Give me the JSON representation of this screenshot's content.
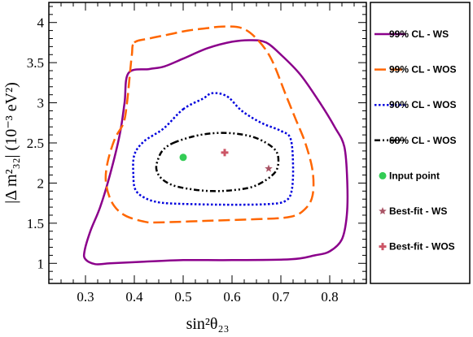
{
  "chart_data": {
    "type": "contour",
    "xlabel": "sin²θ₂₃",
    "ylabel": "|Δ m²₃₂| (10⁻³ eV²)",
    "xlim": [
      0.225,
      0.875
    ],
    "ylim": [
      0.75,
      4.25
    ],
    "x_ticks": [
      "0.3",
      "0.4",
      "0.5",
      "0.6",
      "0.7",
      "0.8"
    ],
    "y_ticks": [
      "1",
      "1.5",
      "2",
      "2.5",
      "3",
      "3.5",
      "4"
    ],
    "grid": false,
    "legend_position": "right",
    "series": [
      {
        "name": "99% CL - WS",
        "color": "#8b008b",
        "style": "solid",
        "points": [
          [
            0.388,
            3.37
          ],
          [
            0.43,
            3.42
          ],
          [
            0.46,
            3.45
          ],
          [
            0.5,
            3.55
          ],
          [
            0.55,
            3.68
          ],
          [
            0.6,
            3.76
          ],
          [
            0.64,
            3.78
          ],
          [
            0.67,
            3.75
          ],
          [
            0.7,
            3.6
          ],
          [
            0.74,
            3.35
          ],
          [
            0.78,
            3.0
          ],
          [
            0.81,
            2.7
          ],
          [
            0.83,
            2.45
          ],
          [
            0.836,
            2.0
          ],
          [
            0.835,
            1.6
          ],
          [
            0.825,
            1.3
          ],
          [
            0.8,
            1.15
          ],
          [
            0.77,
            1.1
          ],
          [
            0.72,
            1.05
          ],
          [
            0.6,
            1.04
          ],
          [
            0.5,
            1.04
          ],
          [
            0.42,
            1.02
          ],
          [
            0.35,
            1.0
          ],
          [
            0.32,
            0.99
          ],
          [
            0.3,
            1.05
          ],
          [
            0.298,
            1.15
          ],
          [
            0.31,
            1.4
          ],
          [
            0.33,
            1.7
          ],
          [
            0.35,
            2.1
          ],
          [
            0.37,
            2.6
          ],
          [
            0.38,
            3.0
          ],
          [
            0.388,
            3.37
          ]
        ]
      },
      {
        "name": "99% CL - WOS",
        "color": "#ff6600",
        "style": "dashed",
        "points": [
          [
            0.4,
            3.75
          ],
          [
            0.43,
            3.8
          ],
          [
            0.47,
            3.85
          ],
          [
            0.51,
            3.9
          ],
          [
            0.55,
            3.93
          ],
          [
            0.58,
            3.95
          ],
          [
            0.62,
            3.93
          ],
          [
            0.65,
            3.8
          ],
          [
            0.68,
            3.55
          ],
          [
            0.71,
            3.1
          ],
          [
            0.73,
            2.8
          ],
          [
            0.75,
            2.5
          ],
          [
            0.765,
            2.15
          ],
          [
            0.765,
            1.85
          ],
          [
            0.75,
            1.68
          ],
          [
            0.72,
            1.58
          ],
          [
            0.65,
            1.55
          ],
          [
            0.55,
            1.53
          ],
          [
            0.45,
            1.51
          ],
          [
            0.42,
            1.52
          ],
          [
            0.38,
            1.6
          ],
          [
            0.355,
            1.75
          ],
          [
            0.342,
            2.0
          ],
          [
            0.345,
            2.25
          ],
          [
            0.36,
            2.55
          ],
          [
            0.378,
            2.75
          ],
          [
            0.385,
            3.0
          ],
          [
            0.39,
            3.3
          ],
          [
            0.395,
            3.6
          ],
          [
            0.4,
            3.75
          ]
        ]
      },
      {
        "name": "90% CL - WOS",
        "color": "#0000dd",
        "style": "dotted",
        "points": [
          [
            0.5,
            2.92
          ],
          [
            0.54,
            3.05
          ],
          [
            0.56,
            3.12
          ],
          [
            0.59,
            3.08
          ],
          [
            0.62,
            2.9
          ],
          [
            0.66,
            2.75
          ],
          [
            0.7,
            2.65
          ],
          [
            0.72,
            2.55
          ],
          [
            0.725,
            2.2
          ],
          [
            0.722,
            1.9
          ],
          [
            0.71,
            1.78
          ],
          [
            0.68,
            1.74
          ],
          [
            0.6,
            1.73
          ],
          [
            0.5,
            1.74
          ],
          [
            0.45,
            1.76
          ],
          [
            0.42,
            1.82
          ],
          [
            0.402,
            1.92
          ],
          [
            0.398,
            2.1
          ],
          [
            0.4,
            2.35
          ],
          [
            0.42,
            2.52
          ],
          [
            0.46,
            2.68
          ],
          [
            0.5,
            2.92
          ]
        ]
      },
      {
        "name": "68% CL - WOS",
        "color": "#000000",
        "style": "dashdot",
        "points": [
          [
            0.48,
            2.5
          ],
          [
            0.52,
            2.58
          ],
          [
            0.56,
            2.62
          ],
          [
            0.6,
            2.62
          ],
          [
            0.64,
            2.58
          ],
          [
            0.67,
            2.5
          ],
          [
            0.69,
            2.4
          ],
          [
            0.695,
            2.28
          ],
          [
            0.69,
            2.15
          ],
          [
            0.67,
            2.04
          ],
          [
            0.64,
            1.95
          ],
          [
            0.6,
            1.91
          ],
          [
            0.56,
            1.9
          ],
          [
            0.52,
            1.92
          ],
          [
            0.48,
            1.97
          ],
          [
            0.455,
            2.06
          ],
          [
            0.445,
            2.18
          ],
          [
            0.45,
            2.32
          ],
          [
            0.46,
            2.42
          ],
          [
            0.48,
            2.5
          ]
        ]
      }
    ],
    "markers": [
      {
        "name": "Input point",
        "x": 0.5,
        "y": 2.32,
        "symbol": "circle",
        "color": "#33cc55"
      },
      {
        "name": "Best-fit - WS",
        "x": 0.675,
        "y": 2.18,
        "symbol": "star",
        "color": "#aa5566"
      },
      {
        "name": "Best-fit - WOS",
        "x": 0.585,
        "y": 2.38,
        "symbol": "plus",
        "color": "#cc5566"
      }
    ]
  }
}
